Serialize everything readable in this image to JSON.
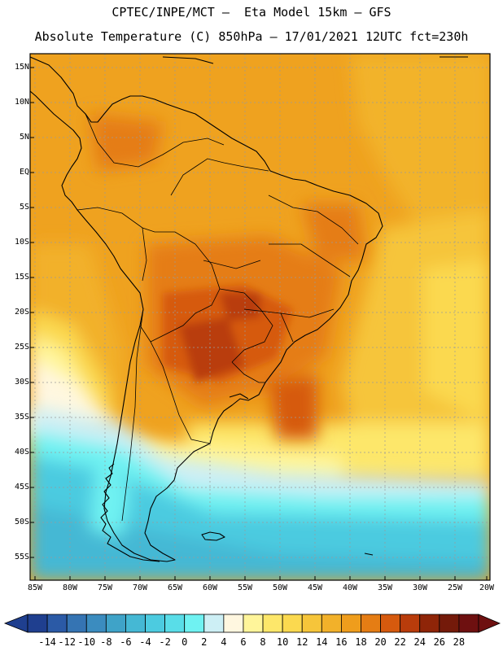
{
  "header": {
    "line1": "CPTEC/INPE/MCT –  Eta Model 15km – GFS",
    "line2": "Absolute Temperature (C) 850hPa – 17/01/2021 12UTC fct=230h"
  },
  "axes": {
    "lat_labels": [
      "15N",
      "10N",
      "5N",
      "EQ",
      "5S",
      "10S",
      "15S",
      "20S",
      "25S",
      "30S",
      "35S",
      "40S",
      "45S",
      "50S",
      "55S"
    ],
    "lon_labels": [
      "85W",
      "80W",
      "75W",
      "70W",
      "65W",
      "60W",
      "55W",
      "50W",
      "45W",
      "40W",
      "35W",
      "30W",
      "25W",
      "20W"
    ]
  },
  "colorbar": {
    "labels": [
      "-14",
      "-12",
      "-10",
      "-8",
      "-6",
      "-4",
      "-2",
      "0",
      "2",
      "4",
      "6",
      "8",
      "10",
      "12",
      "14",
      "16",
      "18",
      "20",
      "22",
      "24",
      "26",
      "28"
    ],
    "colors": [
      "#1f3f8f",
      "#2b5aa6",
      "#3574b3",
      "#3b8cbf",
      "#3fa3c8",
      "#45b8d4",
      "#4ccbe0",
      "#59dde8",
      "#6ff2f2",
      "#cdeff5",
      "#fff7e0",
      "#fff59a",
      "#fde76a",
      "#fbd94f",
      "#f6c53a",
      "#f2b12a",
      "#ef9d1c",
      "#e57d14",
      "#d65a0e",
      "#b93c0b",
      "#8f2508",
      "#741a0a",
      "#6e1010"
    ]
  }
}
